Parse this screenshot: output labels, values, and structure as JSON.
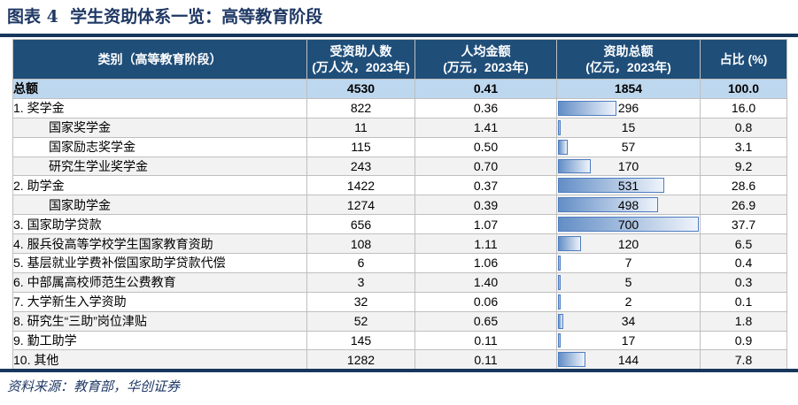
{
  "title": "图表 4  学生资助体系一览：高等教育阶段",
  "source_note": "资料来源：教育部，华创证券",
  "colors": {
    "header_bg": "#1F4E79",
    "total_row_bg": "#BDD7EE",
    "alt_row_bg": "#F2F2F2",
    "rule": "#17365D",
    "title_color": "#1F3864",
    "grid": "#BFBFBF",
    "bar_border": "#4E7CBF",
    "bar_start": "#638EC6",
    "bar_end": "#EFF4FB"
  },
  "chart_data": {
    "type": "table",
    "title": "学生资助体系一览：高等教育阶段",
    "bar_column": "资助总额 (亿元，2023年)",
    "bar_max": 700,
    "headers": [
      {
        "line1": "类别（高等教育阶段）",
        "line2": ""
      },
      {
        "line1": "受资助人数",
        "line2": "(万人次，2023年)"
      },
      {
        "line1": "人均金额",
        "line2": "(万元，2023年)"
      },
      {
        "line1": "资助总额",
        "line2": "(亿元，2023年)"
      },
      {
        "line1": "占比 (%)",
        "line2": ""
      }
    ],
    "rows": [
      {
        "label": "总额",
        "recipients": "4530",
        "per_capita": "0.41",
        "total": "1854",
        "share": "100.0",
        "indent": false,
        "bold": true,
        "bar": false,
        "bg": "total"
      },
      {
        "label": "1. 奖学金",
        "recipients": "822",
        "per_capita": "0.36",
        "total": "296",
        "share": "16.0",
        "indent": false,
        "bold": false,
        "bar": true,
        "bg": "white"
      },
      {
        "label": "国家奖学金",
        "recipients": "11",
        "per_capita": "1.41",
        "total": "15",
        "share": "0.8",
        "indent": true,
        "bold": false,
        "bar": true,
        "bg": "gray"
      },
      {
        "label": "国家励志奖学金",
        "recipients": "115",
        "per_capita": "0.50",
        "total": "57",
        "share": "3.1",
        "indent": true,
        "bold": false,
        "bar": true,
        "bg": "white"
      },
      {
        "label": "研究生学业奖学金",
        "recipients": "243",
        "per_capita": "0.70",
        "total": "170",
        "share": "9.2",
        "indent": true,
        "bold": false,
        "bar": true,
        "bg": "gray"
      },
      {
        "label": "2. 助学金",
        "recipients": "1422",
        "per_capita": "0.37",
        "total": "531",
        "share": "28.6",
        "indent": false,
        "bold": false,
        "bar": true,
        "bg": "white"
      },
      {
        "label": "国家助学金",
        "recipients": "1274",
        "per_capita": "0.39",
        "total": "498",
        "share": "26.9",
        "indent": true,
        "bold": false,
        "bar": true,
        "bg": "gray"
      },
      {
        "label": "3. 国家助学贷款",
        "recipients": "656",
        "per_capita": "1.07",
        "total": "700",
        "share": "37.7",
        "indent": false,
        "bold": false,
        "bar": true,
        "bg": "white"
      },
      {
        "label": "4. 服兵役高等学校学生国家教育资助",
        "recipients": "108",
        "per_capita": "1.11",
        "total": "120",
        "share": "6.5",
        "indent": false,
        "bold": false,
        "bar": true,
        "bg": "gray"
      },
      {
        "label": "5. 基层就业学费补偿国家助学贷款代偿",
        "recipients": "6",
        "per_capita": "1.06",
        "total": "7",
        "share": "0.4",
        "indent": false,
        "bold": false,
        "bar": true,
        "bg": "white"
      },
      {
        "label": "6. 中部属高校师范生公费教育",
        "recipients": "3",
        "per_capita": "1.40",
        "total": "5",
        "share": "0.3",
        "indent": false,
        "bold": false,
        "bar": true,
        "bg": "gray"
      },
      {
        "label": "7. 大学新生入学资助",
        "recipients": "32",
        "per_capita": "0.06",
        "total": "2",
        "share": "0.1",
        "indent": false,
        "bold": false,
        "bar": true,
        "bg": "white"
      },
      {
        "label": "8. 研究生“三助”岗位津贴",
        "recipients": "52",
        "per_capita": "0.65",
        "total": "34",
        "share": "1.8",
        "indent": false,
        "bold": false,
        "bar": true,
        "bg": "gray"
      },
      {
        "label": "9. 勤工助学",
        "recipients": "145",
        "per_capita": "0.11",
        "total": "17",
        "share": "0.9",
        "indent": false,
        "bold": false,
        "bar": true,
        "bg": "white"
      },
      {
        "label": "10. 其他",
        "recipients": "1282",
        "per_capita": "0.11",
        "total": "144",
        "share": "7.8",
        "indent": false,
        "bold": false,
        "bar": true,
        "bg": "gray"
      }
    ]
  }
}
